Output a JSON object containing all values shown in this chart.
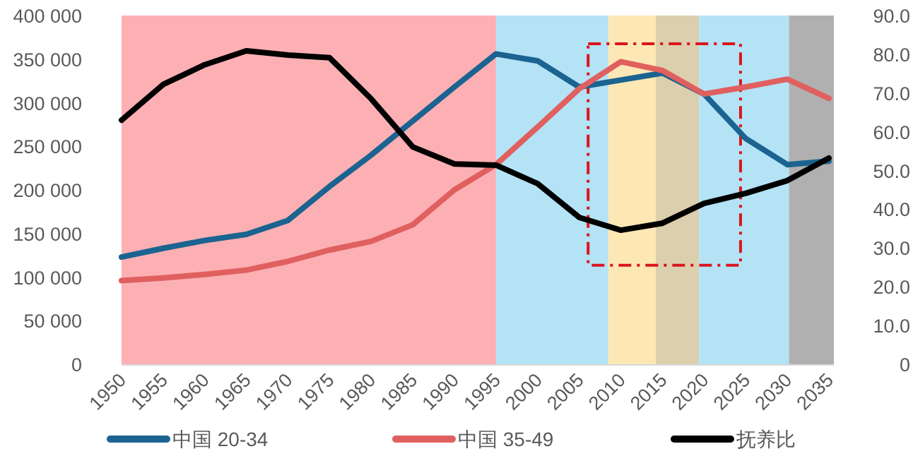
{
  "chart_data": {
    "type": "line",
    "x": [
      1950,
      1955,
      1960,
      1965,
      1970,
      1975,
      1980,
      1985,
      1990,
      1995,
      2000,
      2005,
      2010,
      2015,
      2020,
      2025,
      2030,
      2035
    ],
    "series": [
      {
        "name": "中国 20-34",
        "color": "#1b6390",
        "values": [
          123000,
          133000,
          142000,
          149000,
          165000,
          204000,
          240000,
          279000,
          318000,
          356000,
          348000,
          318000,
          326000,
          334000,
          310000,
          259000,
          229000,
          233000
        ]
      },
      {
        "name": "中国 35-49",
        "color": "#e0605f",
        "values": [
          96000,
          99000,
          103000,
          108000,
          118000,
          131000,
          141000,
          160000,
          200000,
          229000,
          272000,
          316000,
          347000,
          337000,
          310000,
          318000,
          327000,
          305000
        ]
      },
      {
        "name": "抚养比",
        "color": "#000000",
        "axis": "y2",
        "values": [
          63.0,
          72.2,
          77.3,
          80.9,
          79.8,
          79.1,
          68.5,
          56.1,
          51.7,
          51.4,
          46.6,
          37.9,
          34.6,
          36.4,
          41.5,
          44.1,
          47.4,
          53.2
        ]
      }
    ],
    "xlim": [
      1950,
      2035.6
    ],
    "xticks": [
      1950,
      1955,
      1960,
      1965,
      1970,
      1975,
      1980,
      1985,
      1990,
      1995,
      2000,
      2005,
      2010,
      2015,
      2020,
      2025,
      2030,
      2035
    ],
    "ylim": [
      0,
      400000
    ],
    "yticks": [
      {
        "value": 0,
        "label": "0"
      },
      {
        "value": 50000,
        "label": "50 000"
      },
      {
        "value": 100000,
        "label": "100 000"
      },
      {
        "value": 150000,
        "label": "150 000"
      },
      {
        "value": 200000,
        "label": "200 000"
      },
      {
        "value": 250000,
        "label": "250 000"
      },
      {
        "value": 300000,
        "label": "300 000"
      },
      {
        "value": 350000,
        "label": "350 000"
      },
      {
        "value": 400000,
        "label": "400 000"
      }
    ],
    "y2lim": [
      0,
      90
    ],
    "y2ticks": [
      {
        "value": 0,
        "label": "0"
      },
      {
        "value": 10,
        "label": "10.0"
      },
      {
        "value": 20,
        "label": "20.0"
      },
      {
        "value": 30,
        "label": "30.0"
      },
      {
        "value": 40,
        "label": "40.0"
      },
      {
        "value": 50,
        "label": "50.0"
      },
      {
        "value": 60,
        "label": "60.0"
      },
      {
        "value": 70,
        "label": "70.0"
      },
      {
        "value": 80,
        "label": "80.0"
      },
      {
        "value": 90,
        "label": "90.0"
      }
    ],
    "bands": [
      {
        "axis": "x",
        "from": 1950,
        "to": 1995,
        "color": "#fcb0b4"
      },
      {
        "axis": "x",
        "from": 1995,
        "to": 2008.5,
        "color": "#b4e3f6"
      },
      {
        "axis": "x",
        "from": 2008.5,
        "to": 2014.2,
        "color": "#fde8b5"
      },
      {
        "axis": "x",
        "from": 2014.2,
        "to": 2019.4,
        "color": "#dccfae"
      },
      {
        "axis": "x",
        "from": 2019.4,
        "to": 2030.2,
        "color": "#b4e3f6"
      },
      {
        "axis": "x",
        "from": 2030.2,
        "to": 2035.6,
        "color": "#b0b0b0"
      }
    ],
    "grid": false,
    "legend": "bottom",
    "line_style": "solid"
  }
}
